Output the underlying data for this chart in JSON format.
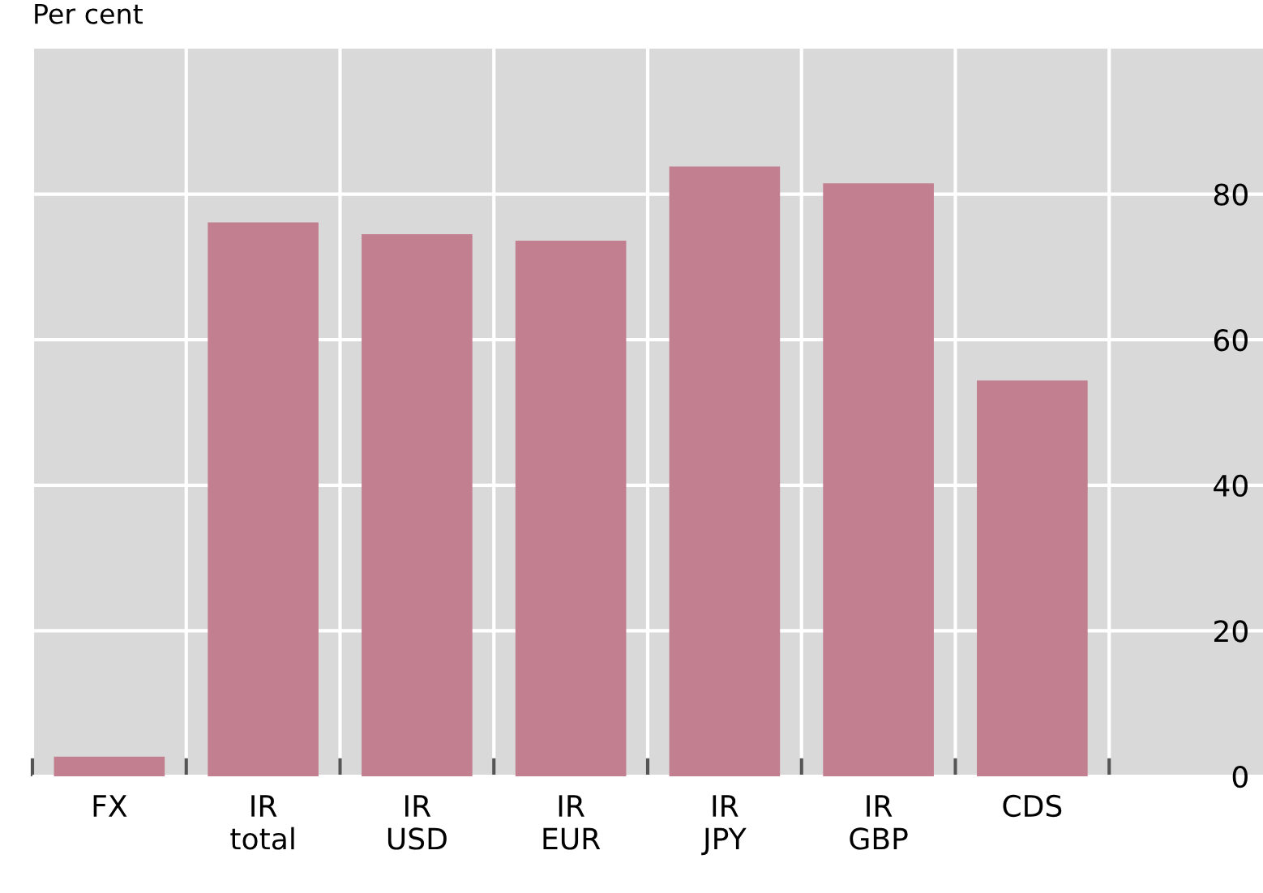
{
  "chart_data": {
    "type": "bar",
    "ylabel": "Per cent",
    "categories": [
      "FX",
      "IR\ntotal",
      "IR\nUSD",
      "IR\nEUR",
      "IR\nJPY",
      "IR\nGBP",
      "CDS"
    ],
    "values": [
      2.7,
      76.1,
      74.5,
      73.6,
      83.8,
      81.5,
      54.4
    ],
    "color": "#c17f8f",
    "ylim": [
      0,
      100
    ],
    "yticks": [
      0,
      20,
      40,
      60,
      80
    ],
    "grid": true
  }
}
